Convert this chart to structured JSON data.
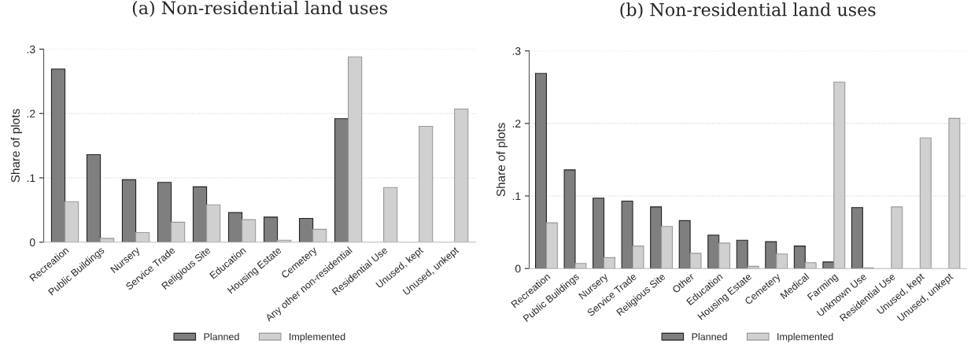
{
  "chart_data": [
    {
      "type": "bar",
      "title": "(a) Non-residential land uses",
      "ylabel": "Share of plots",
      "categories": [
        "Recreation",
        "Public Buildings",
        "Nursery",
        "Service Trade",
        "Religious Site",
        "Education",
        "Housing Estate",
        "Cemetery",
        "Any other non-residential",
        "Residential Use",
        "Unused, kept",
        "Unused, unkept"
      ],
      "series": [
        {
          "name": "Planned",
          "color": "#7f7f7f",
          "values": [
            0.269,
            0.136,
            0.097,
            0.093,
            0.086,
            0.046,
            0.039,
            0.037,
            0.192,
            null,
            null,
            null
          ]
        },
        {
          "name": "Implemented",
          "color": "#d0d0d0",
          "values": [
            0.063,
            0.006,
            0.015,
            0.031,
            0.058,
            0.035,
            0.003,
            0.02,
            0.288,
            0.085,
            0.18,
            0.207
          ]
        }
      ],
      "ylim": [
        0,
        0.3
      ],
      "yticks": [
        {
          "value": 0,
          "label": "0"
        },
        {
          "value": 0.1,
          "label": ".1"
        },
        {
          "value": 0.2,
          "label": ".2"
        },
        {
          "value": 0.3,
          "label": ".3"
        }
      ],
      "grid": "y",
      "legend": "bottom"
    },
    {
      "type": "bar",
      "title": "(b) Non-residential land uses",
      "ylabel": "Share of plots",
      "categories": [
        "Recreation",
        "Public Buildings",
        "Nursery",
        "Service Trade",
        "Religious Site",
        "Other",
        "Education",
        "Housing Estate",
        "Cemetery",
        "Medical",
        "Farming",
        "Unknown Use",
        "Residential Use",
        "Unused, kept",
        "Unused, unkept"
      ],
      "series": [
        {
          "name": "Planned",
          "color": "#7f7f7f",
          "values": [
            0.269,
            0.136,
            0.097,
            0.093,
            0.085,
            0.066,
            0.046,
            0.039,
            0.037,
            0.031,
            0.009,
            0.084,
            null,
            null,
            null
          ]
        },
        {
          "name": "Implemented",
          "color": "#d0d0d0",
          "values": [
            0.063,
            0.007,
            0.015,
            0.031,
            0.058,
            0.021,
            0.035,
            0.003,
            0.02,
            0.008,
            0.257,
            0.001,
            0.085,
            0.18,
            0.207
          ]
        }
      ],
      "ylim": [
        0,
        0.3
      ],
      "yticks": [
        {
          "value": 0,
          "label": "0"
        },
        {
          "value": 0.1,
          "label": ".1"
        },
        {
          "value": 0.2,
          "label": ".2"
        },
        {
          "value": 0.3,
          "label": ".3"
        }
      ],
      "grid": "y",
      "legend": "bottom"
    }
  ]
}
